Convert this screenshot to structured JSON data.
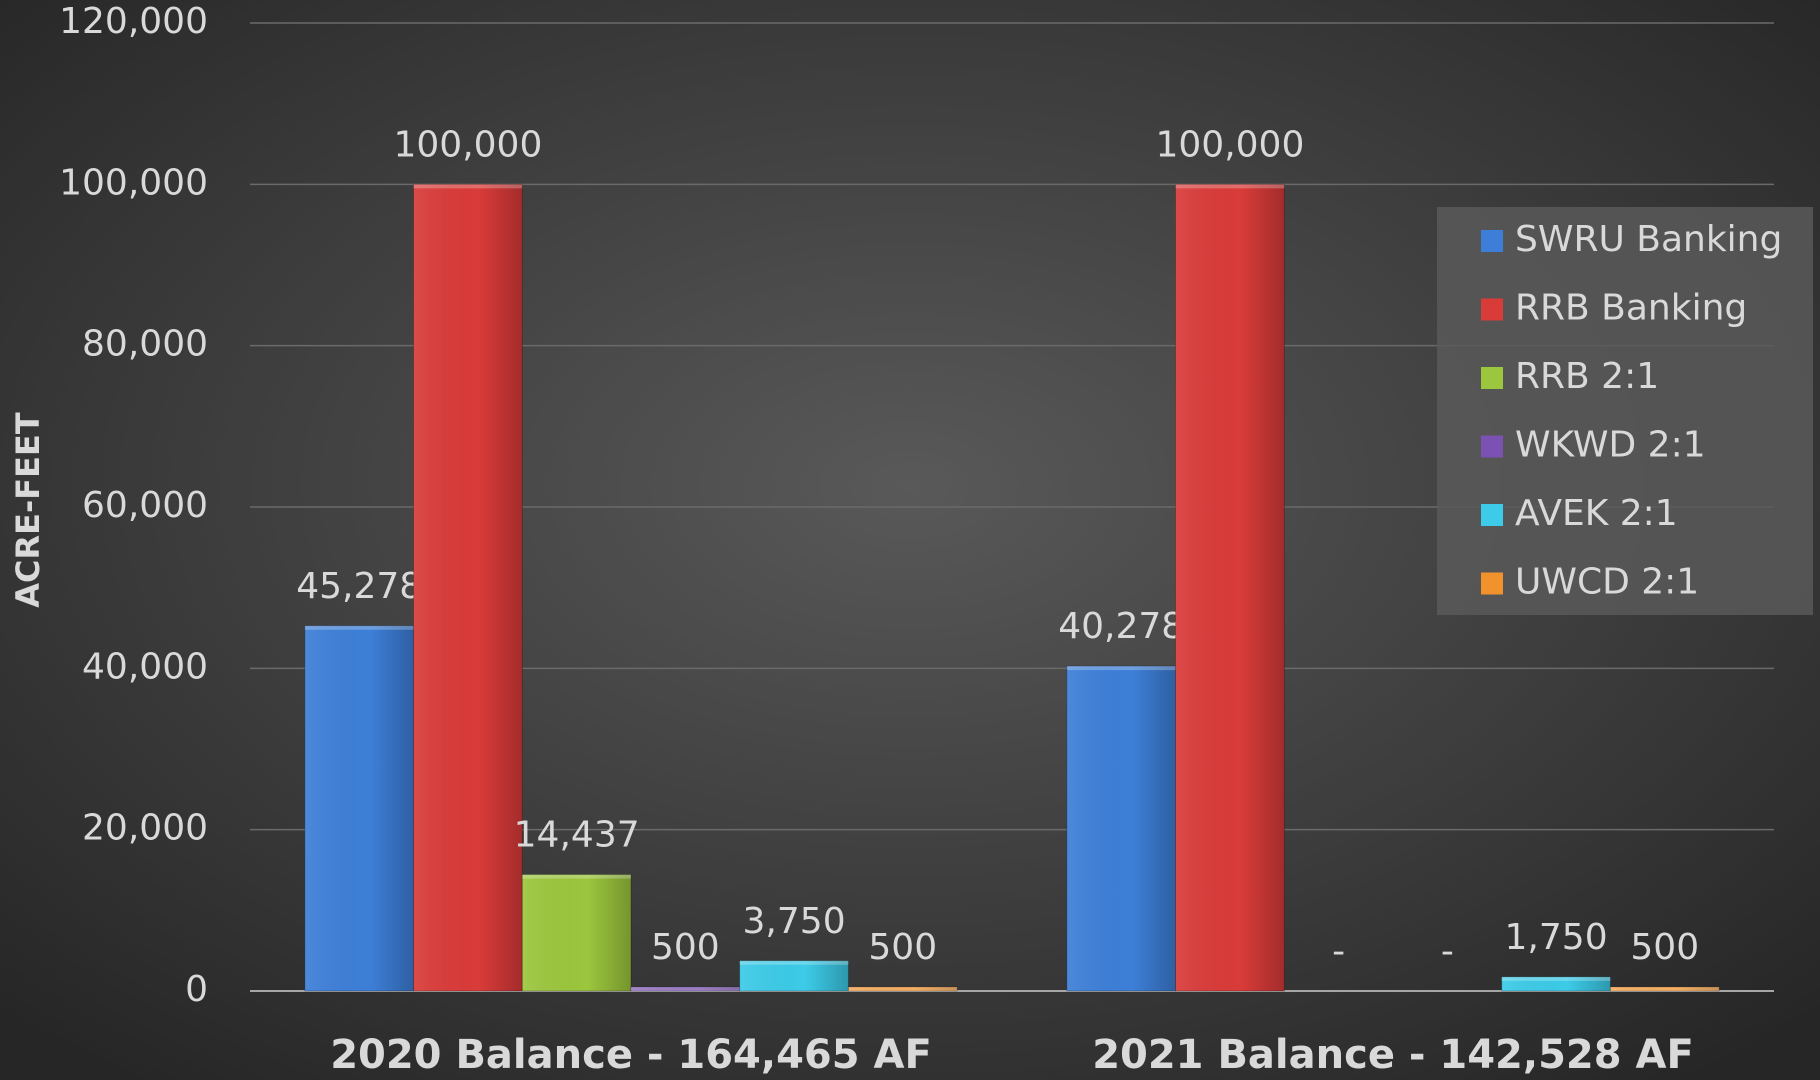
{
  "chart_data": {
    "type": "bar",
    "y_label": "ACRE-FEET",
    "categories": [
      "2020 Balance - 164,465 AF",
      "2021 Balance - 142,528 AF"
    ],
    "series": [
      {
        "name": "SWRU Banking",
        "color": "#3d7fd8",
        "values": [
          45278,
          40278
        ],
        "value_labels": [
          "45,278",
          "40,278"
        ]
      },
      {
        "name": "RRB Banking",
        "color": "#d93b39",
        "values": [
          100000,
          100000
        ],
        "value_labels": [
          "100,000",
          "100,000"
        ]
      },
      {
        "name": "RRB 2:1",
        "color": "#9cc63d",
        "values": [
          14437,
          0
        ],
        "value_labels": [
          "14,437",
          "-"
        ]
      },
      {
        "name": "WKWD 2:1",
        "color": "#7b52b3",
        "values": [
          500,
          0
        ],
        "value_labels": [
          "500",
          "-"
        ]
      },
      {
        "name": "AVEK 2:1",
        "color": "#3ccbe8",
        "values": [
          3750,
          1750
        ],
        "value_labels": [
          "3,750",
          "1,750"
        ]
      },
      {
        "name": "UWCD 2:1",
        "color": "#f2922d",
        "values": [
          500,
          500
        ],
        "value_labels": [
          "500",
          "500"
        ]
      }
    ],
    "ylim": [
      0,
      120000
    ],
    "yticks": [
      0,
      {
        "value": 20000,
        "label": "20,000"
      },
      {
        "value": 40000,
        "label": "40,000"
      },
      {
        "value": 60000,
        "label": "60,000"
      },
      {
        "value": 80000,
        "label": "80,000"
      },
      {
        "value": 100000,
        "label": "100,000"
      },
      {
        "value": 120000,
        "label": "120,000"
      }
    ],
    "grid": true,
    "legend": "right"
  }
}
